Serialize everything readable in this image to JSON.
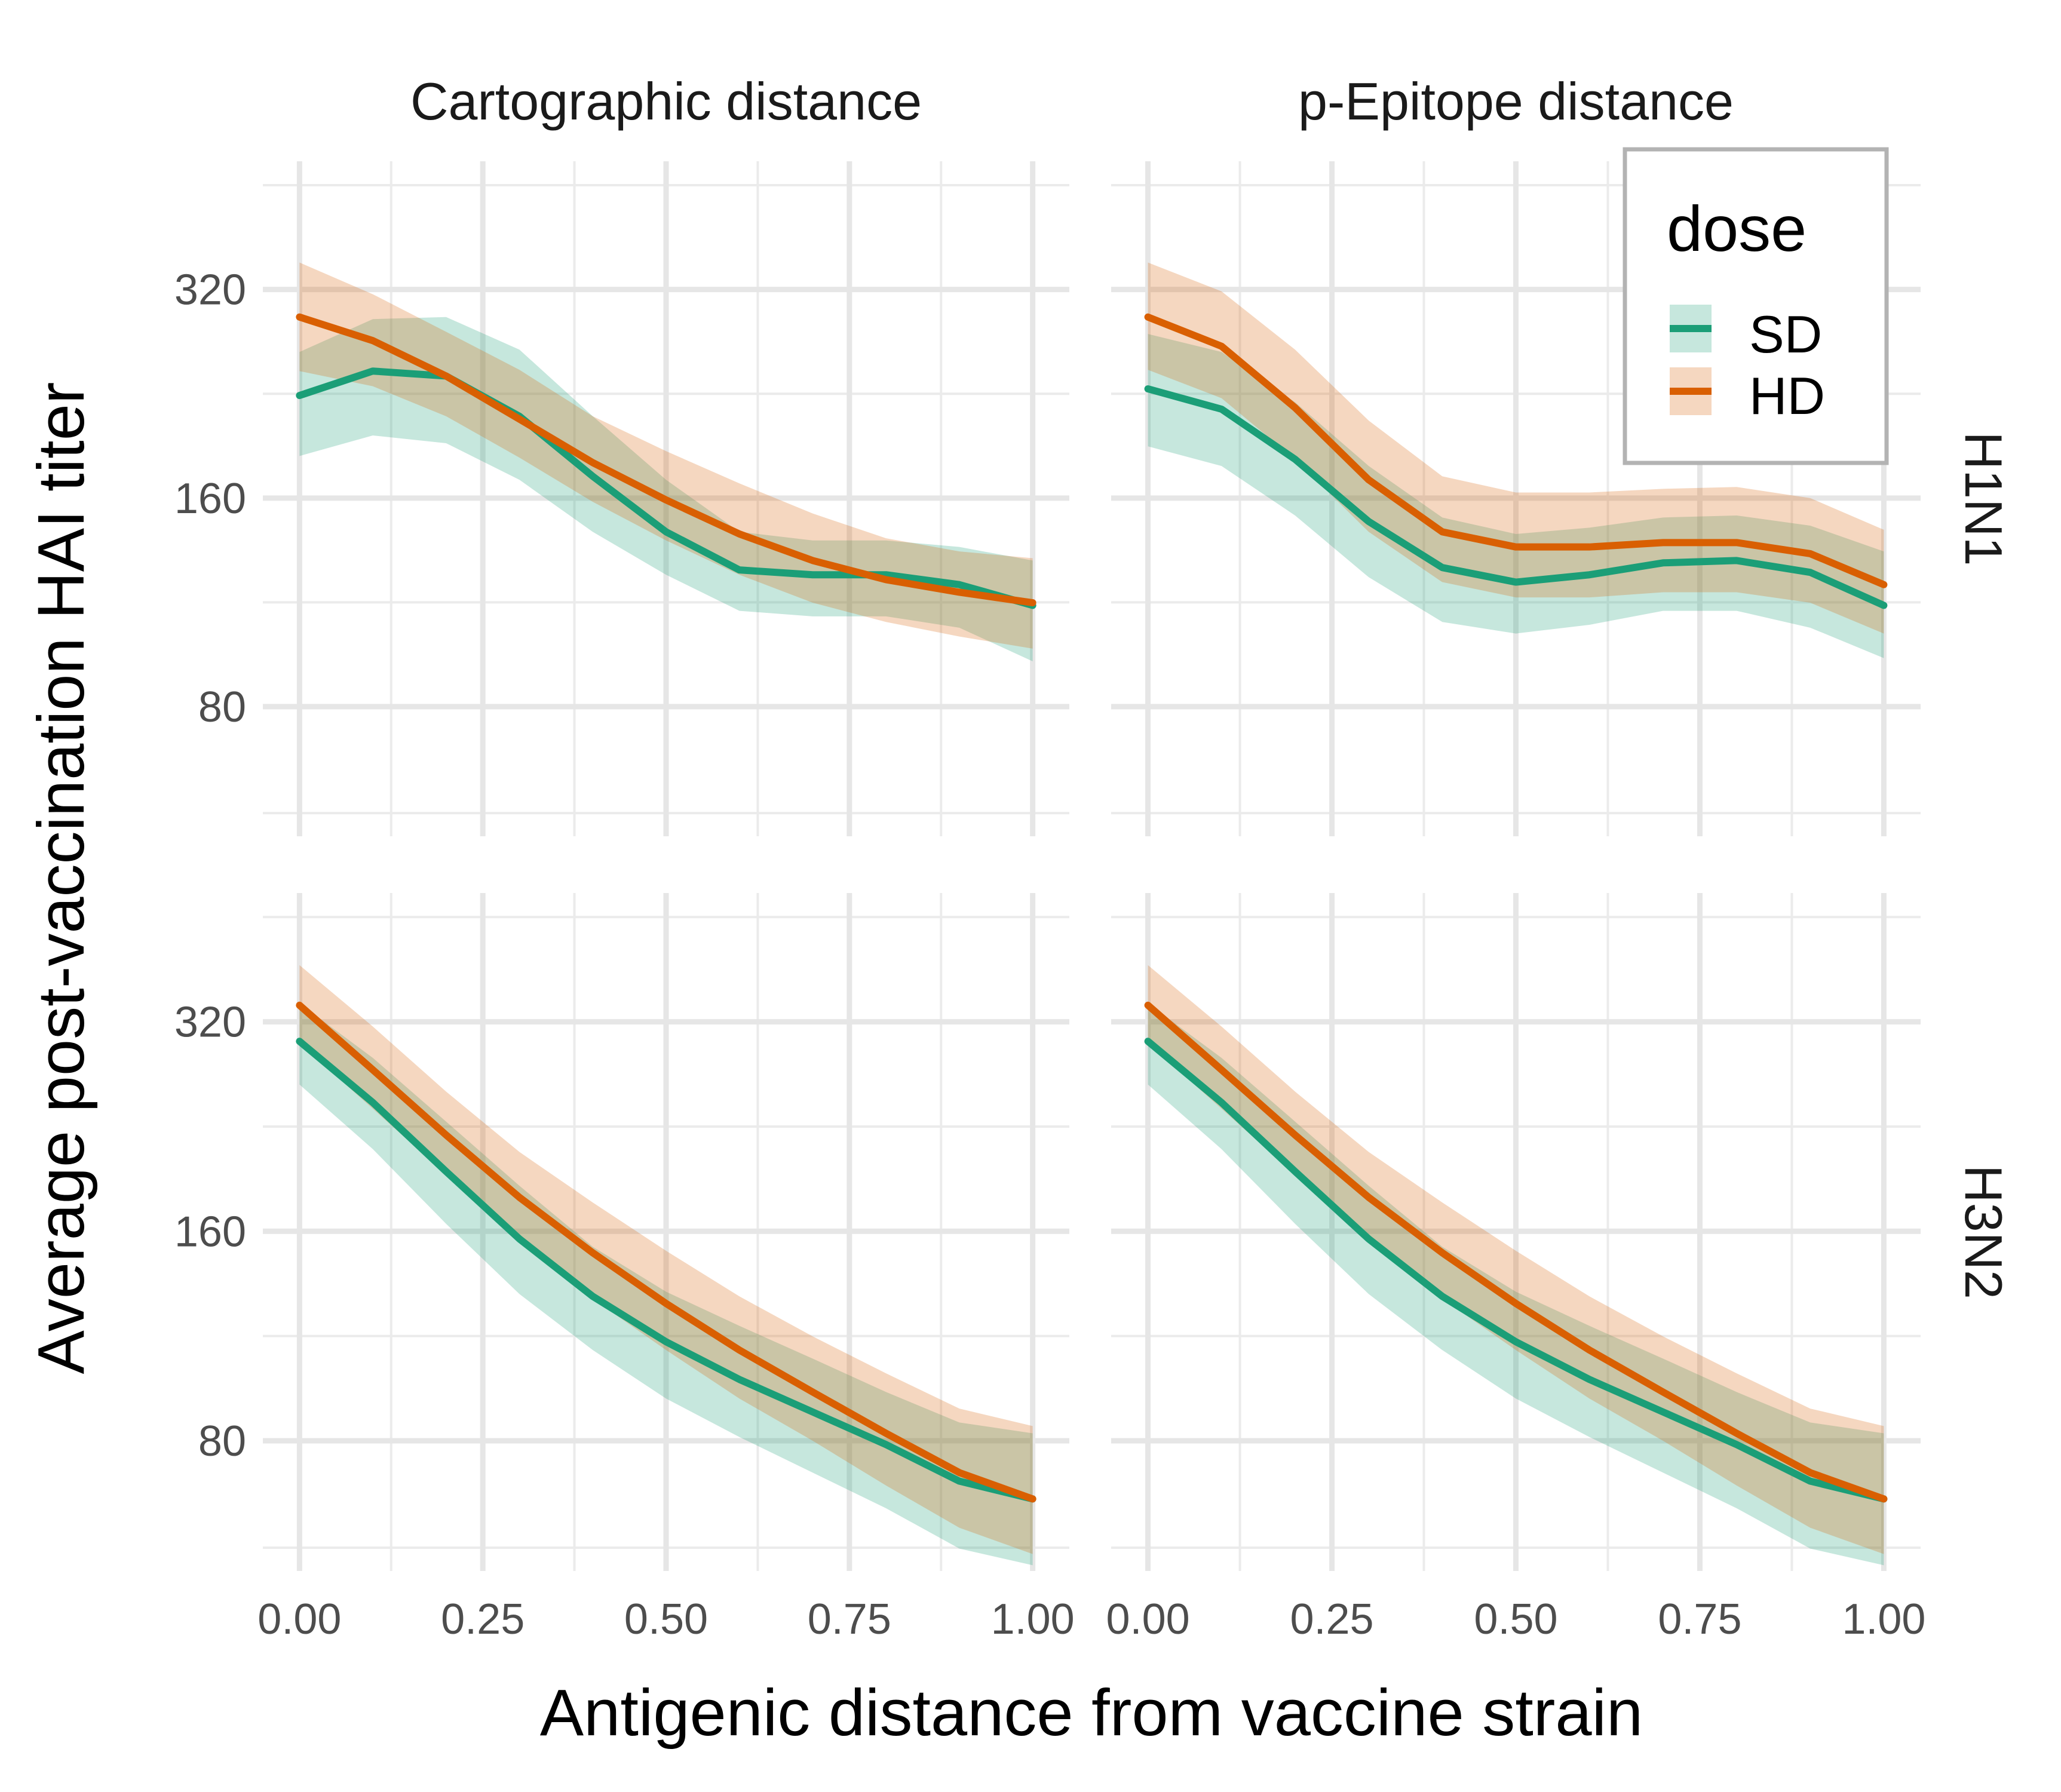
{
  "chart_data": {
    "type": "line",
    "xlabel": "Antigenic distance from vaccine strain",
    "ylabel": "Average post-vaccination HAI titer",
    "column_strips": [
      "Cartographic distance",
      "p-Epitope distance"
    ],
    "row_strips": [
      "H1N1",
      "H3N2"
    ],
    "x_ticks": [
      "0.00",
      "0.25",
      "0.50",
      "0.75",
      "1.00"
    ],
    "x_tick_values": [
      0,
      0.25,
      0.5,
      0.75,
      1
    ],
    "y_ticks": [
      "80",
      "160",
      "320"
    ],
    "y_tick_values": [
      80,
      160,
      320
    ],
    "y_scale": "log2",
    "xlim": [
      -0.05,
      1.05
    ],
    "ylim": [
      52,
      490
    ],
    "grid": true,
    "legend": {
      "title": "dose",
      "position": "top-right",
      "entries": [
        {
          "label": "SD",
          "color": "#1b9e77"
        },
        {
          "label": "HD",
          "color": "#d95f02"
        }
      ]
    },
    "x": [
      0,
      0.1,
      0.2,
      0.3,
      0.4,
      0.5,
      0.6,
      0.7,
      0.8,
      0.9,
      1.0
    ],
    "panels": [
      {
        "column": "Cartographic distance",
        "row": "H1N1",
        "series": [
          {
            "name": "SD",
            "color": "#1b9e77",
            "y": [
              225,
              244,
              240,
              210,
              172,
              143,
              126,
              124,
              124,
              120,
              112
            ],
            "lower": [
              184,
              197,
              192,
              170,
              143,
              124,
              110,
              108,
              108,
              104,
              93
            ],
            "upper": [
              260,
              290,
              292,
              262,
              210,
              170,
              143,
              139,
              139,
              136,
              130
            ]
          },
          {
            "name": "HD",
            "color": "#d95f02",
            "y": [
              292,
              270,
              240,
              208,
              180,
              159,
              142,
              130,
              122,
              117,
              113
            ],
            "lower": [
              244,
              232,
              210,
              183,
              158,
              139,
              124,
              113,
              106,
              101,
              97
            ],
            "upper": [
              350,
              315,
              278,
              245,
              210,
              187,
              168,
              152,
              140,
              134,
              131
            ]
          }
        ]
      },
      {
        "column": "p-Epitope distance",
        "row": "H1N1",
        "series": [
          {
            "name": "SD",
            "color": "#1b9e77",
            "y": [
              230,
              215,
              182,
              148,
              127,
              121,
              124,
              129,
              130,
              125,
              112
            ],
            "lower": [
              190,
              178,
              151,
              123,
              106,
              102,
              105,
              110,
              110,
              104,
              94
            ],
            "upper": [
              276,
              260,
              220,
              178,
              150,
              142,
              145,
              150,
              151,
              146,
              134
            ]
          },
          {
            "name": "HD",
            "color": "#d95f02",
            "y": [
              292,
              265,
              216,
              170,
              143,
              136,
              136,
              138,
              138,
              133,
              120
            ],
            "lower": [
              245,
              223,
              182,
              143,
              121,
              115,
              115,
              117,
              117,
              113,
              102
            ],
            "upper": [
              350,
              318,
              262,
              207,
              172,
              163,
              163,
              165,
              166,
              160,
              144
            ]
          }
        ]
      },
      {
        "column": "Cartographic distance",
        "row": "H3N2",
        "series": [
          {
            "name": "SD",
            "color": "#1b9e77",
            "y": [
              300,
              245,
              195,
              156,
              129,
              111,
              98,
              88,
              79,
              70,
              66
            ],
            "lower": [
              260,
              210,
              164,
              130,
              108,
              92,
              81,
              72,
              64,
              56,
              53
            ],
            "upper": [
              340,
              284,
              230,
              186,
              152,
              131,
              117,
              105,
              94,
              85,
              82
            ]
          },
          {
            "name": "HD",
            "color": "#d95f02",
            "y": [
              338,
              273,
              220,
              179,
              149,
              126,
              108,
              94,
              82,
              72,
              66
            ],
            "lower": [
              298,
              240,
              193,
              155,
              128,
              108,
              92,
              80,
              69,
              60,
              55
            ],
            "upper": [
              386,
              315,
              254,
              208,
              176,
              150,
              129,
              113,
              100,
              89,
              84
            ]
          }
        ]
      },
      {
        "column": "p-Epitope distance",
        "row": "H3N2",
        "series": [
          {
            "name": "SD",
            "color": "#1b9e77",
            "y": [
              300,
              245,
              195,
              156,
              129,
              111,
              98,
              88,
              79,
              70,
              66
            ],
            "lower": [
              260,
              210,
              164,
              130,
              108,
              92,
              81,
              72,
              64,
              56,
              53
            ],
            "upper": [
              340,
              284,
              230,
              186,
              152,
              131,
              117,
              105,
              94,
              85,
              82
            ]
          },
          {
            "name": "HD",
            "color": "#d95f02",
            "y": [
              338,
              273,
              220,
              179,
              149,
              126,
              108,
              94,
              82,
              72,
              66
            ],
            "lower": [
              298,
              240,
              193,
              155,
              128,
              108,
              92,
              80,
              69,
              60,
              55
            ],
            "upper": [
              386,
              315,
              254,
              208,
              176,
              150,
              129,
              113,
              100,
              89,
              84
            ]
          }
        ]
      }
    ]
  }
}
